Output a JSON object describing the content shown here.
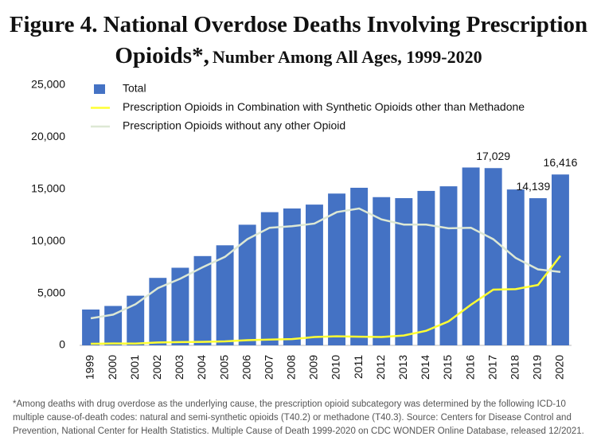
{
  "chart_data": {
    "type": "bar",
    "title": "Figure 4. National Overdose Deaths Involving Prescription Opioids*,",
    "subtitle": "Number Among All Ages, 1999-2020",
    "footnote": "*Among deaths with drug overdose as the underlying cause, the prescription opioid subcategory was determined by the following ICD-10 multiple cause-of-death codes: natural and semi-synthetic opioids (T40.2) or methadone (T40.3). Source: Centers for Disease Control and Prevention, National Center for Health Statistics. Multiple Cause of Death 1999-2020 on CDC WONDER Online Database, released 12/2021.",
    "categories": [
      "1999",
      "2000",
      "2001",
      "2002",
      "2003",
      "2004",
      "2005",
      "2006",
      "2007",
      "2008",
      "2009",
      "2010",
      "2011",
      "2012",
      "2013",
      "2014",
      "2015",
      "2016",
      "2017",
      "2018",
      "2019",
      "2020"
    ],
    "series": [
      {
        "name": "Total",
        "type": "bar",
        "color": "#4472c4",
        "values": [
          3442,
          3785,
          4770,
          6482,
          7456,
          8577,
          9612,
          11589,
          12796,
          13149,
          13523,
          14583,
          15140,
          14240,
          14145,
          14838,
          15281,
          17087,
          17029,
          14975,
          14139,
          16416
        ],
        "value_labels": [
          null,
          null,
          null,
          null,
          null,
          null,
          null,
          null,
          null,
          null,
          null,
          null,
          null,
          null,
          null,
          null,
          null,
          null,
          "17,029",
          null,
          "14,139",
          "16,416"
        ]
      },
      {
        "name": "Prescription Opioids in Combination with Synthetic Opioids other than Methadone",
        "type": "line",
        "color": "#ffff33",
        "values": [
          150,
          180,
          170,
          280,
          320,
          330,
          380,
          500,
          550,
          600,
          800,
          870,
          830,
          800,
          950,
          1400,
          2300,
          3900,
          5350,
          5400,
          5800,
          8600
        ]
      },
      {
        "name": "Prescription Opioids without any other Opioid",
        "type": "line",
        "color": "#dde8d4",
        "values": [
          2600,
          2950,
          3950,
          5500,
          6400,
          7500,
          8500,
          10200,
          11300,
          11450,
          11700,
          12800,
          13150,
          12100,
          11600,
          11600,
          11250,
          11300,
          10200,
          8400,
          7300,
          7050
        ]
      }
    ],
    "ylim": [
      0,
      25000
    ],
    "yticks": [
      0,
      {
        "value": 5000,
        "label": "5,000"
      },
      {
        "value": 10000,
        "label": "10,000"
      },
      {
        "value": 15000,
        "label": "15,000"
      },
      {
        "value": 20000,
        "label": "20,000"
      },
      {
        "value": 25000,
        "label": "25,000"
      }
    ],
    "legend": "top-left"
  }
}
